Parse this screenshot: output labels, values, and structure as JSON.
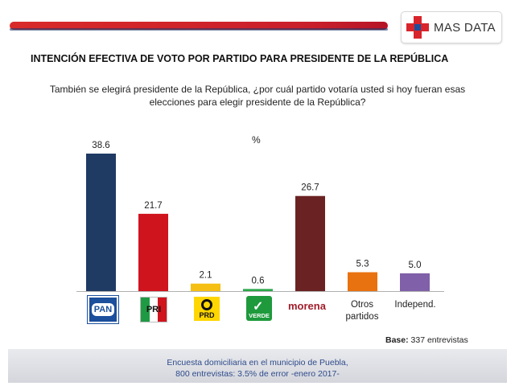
{
  "header": {
    "logo_text": "MAS DATA",
    "colors": {
      "rule": "#c91f2b",
      "logo_cross": "#d9242b"
    }
  },
  "title": "INTENCIÓN EFECTIVA DE VOTO POR PARTIDO PARA PRESIDENTE DE LA REPÚBLICA",
  "question_line1": "También se elegirá presidente de la República, ¿por cuál partido votaría usted si hoy fueran esas",
  "question_line2": "elecciones para elegir presidente de la República?",
  "unit_label": "%",
  "party_logos": {
    "pan": "PAN",
    "pri": "PRI",
    "prd": "PRD",
    "verde": "VERDE",
    "morena": "morena"
  },
  "category_text": {
    "otros_line1": "Otros",
    "otros_line2": "partidos",
    "independ": "Independ."
  },
  "chart_data": {
    "type": "bar",
    "categories": [
      "PAN",
      "PRI",
      "PRD",
      "VERDE",
      "morena",
      "Otros partidos",
      "Independ."
    ],
    "values": [
      38.6,
      21.7,
      2.1,
      0.6,
      26.7,
      5.3,
      5.0
    ],
    "value_labels": [
      "38.6",
      "21.7",
      "2.1",
      "0.6",
      "26.7",
      "5.3",
      "5.0"
    ],
    "colors": [
      "#1f3a63",
      "#d0141e",
      "#f5bf13",
      "#2aa84a",
      "#6b2222",
      "#e8720f",
      "#8060a8"
    ],
    "unit": "%",
    "ylim": [
      0,
      40
    ],
    "grid": false
  },
  "base": {
    "label": "Base:",
    "value": "337 entrevistas"
  },
  "footer": {
    "line1": "Encuesta domiciliaria en el municipio de Puebla,",
    "line2": "800 entrevistas: 3.5% de error -enero 2017-"
  }
}
